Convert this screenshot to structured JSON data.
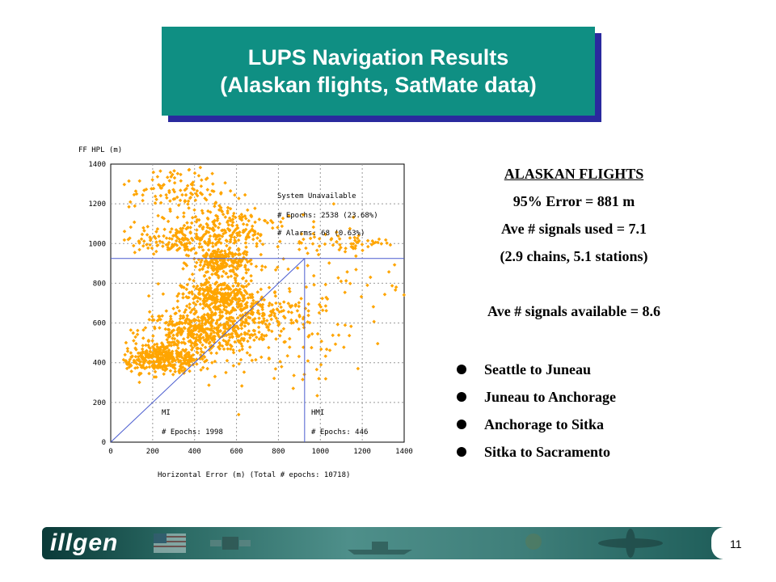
{
  "slide": {
    "title_line1": "LUPS Navigation Results",
    "title_line2": "(Alaskan flights, SatMate data)",
    "page_number": "11",
    "logo_text": "illgen"
  },
  "stats": {
    "heading": "ALASKAN FLIGHTS",
    "error95": "95% Error = 881 m",
    "signals_used": "Ave # signals used = 7.1",
    "chains_stations": "(2.9 chains, 5.1 stations)",
    "signals_available": "Ave # signals available = 8.6"
  },
  "routes": [
    "Seattle to Juneau",
    "Juneau to Anchorage",
    "Anchorage to Sitka",
    "Sitka to Sacramento"
  ],
  "chart_data": {
    "type": "scatter",
    "xlabel": "Horizontal Error (m)  (Total # epochs: 10718)",
    "ylabel": "FF HPL (m)",
    "xlim": [
      0,
      1400
    ],
    "ylim": [
      0,
      1400
    ],
    "xticks": [
      "0",
      "200",
      "400",
      "600",
      "800",
      "1000",
      "1200",
      "1400"
    ],
    "yticks": [
      "0",
      "200",
      "400",
      "600",
      "800",
      "1000",
      "1200",
      "1400"
    ],
    "grid": true,
    "point_color": "#ffa500",
    "alert_limit": 925,
    "annotations": {
      "sys_unavail": "System Unavailable",
      "sys_epochs": "# Epochs: 2538 (23.68%)",
      "sys_alarms": "# Alarms: 68 (0.63%)",
      "mi": "MI",
      "mi_epochs": "# Epochs: 1998",
      "hmi": "HMI",
      "hmi_epochs": "# Epochs: 446"
    },
    "clusters": [
      {
        "cx": 250,
        "cy": 420,
        "sx": 110,
        "sy": 35,
        "n": 380
      },
      {
        "cx": 420,
        "cy": 560,
        "sx": 140,
        "sy": 50,
        "n": 420
      },
      {
        "cx": 520,
        "cy": 730,
        "sx": 90,
        "sy": 40,
        "n": 300
      },
      {
        "cx": 530,
        "cy": 900,
        "sx": 70,
        "sy": 45,
        "n": 240
      },
      {
        "cx": 350,
        "cy": 1020,
        "sx": 160,
        "sy": 35,
        "n": 200
      },
      {
        "cx": 300,
        "cy": 1270,
        "sx": 130,
        "sy": 60,
        "n": 120
      },
      {
        "cx": 560,
        "cy": 1100,
        "sx": 120,
        "sy": 60,
        "n": 140
      },
      {
        "cx": 700,
        "cy": 650,
        "sx": 140,
        "sy": 70,
        "n": 150
      },
      {
        "cx": 800,
        "cy": 500,
        "sx": 180,
        "sy": 120,
        "n": 90
      },
      {
        "cx": 950,
        "cy": 850,
        "sx": 220,
        "sy": 170,
        "n": 80
      },
      {
        "cx": 1150,
        "cy": 1000,
        "sx": 120,
        "sy": 25,
        "n": 50
      }
    ]
  }
}
